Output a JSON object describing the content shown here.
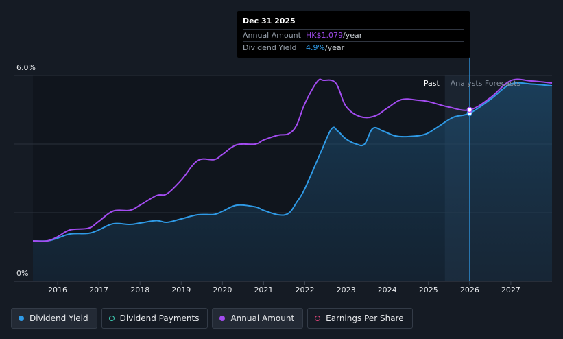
{
  "tooltip": {
    "date": "Dec 31 2025",
    "annual_amount_label": "Annual Amount",
    "annual_amount_value": "HK$1.079",
    "annual_amount_unit": "/year",
    "dividend_yield_label": "Dividend Yield",
    "dividend_yield_value": "4.9%",
    "dividend_yield_unit": "/year"
  },
  "legend": [
    {
      "label": "Dividend Yield",
      "color": "#2f9ae6",
      "style": "filled",
      "active": true
    },
    {
      "label": "Dividend Payments",
      "color": "#3ed0b6",
      "style": "outline",
      "active": false
    },
    {
      "label": "Annual Amount",
      "color": "#a34cf0",
      "style": "filled",
      "active": true
    },
    {
      "label": "Earnings Per Share",
      "color": "#e0457b",
      "style": "outline",
      "active": false
    }
  ],
  "chart_data": {
    "type": "area",
    "x_ticks": [
      "2016",
      "2017",
      "2018",
      "2019",
      "2020",
      "2021",
      "2022",
      "2023",
      "2024",
      "2025",
      "2026",
      "2027"
    ],
    "xlim": [
      2015.4,
      2028.0
    ],
    "y_ticks": [
      "0%",
      "6.0%"
    ],
    "ylim": [
      0,
      6.0
    ],
    "past_label": "Past",
    "forecast_label": "Analysts Forecasts",
    "forecast_start": 2025.4,
    "highlight_x": 2026.0,
    "grid": true,
    "legend_position": "bottom",
    "series": [
      {
        "name": "Dividend Yield",
        "color": "#2f9ae6",
        "x": [
          2015.4,
          2015.75,
          2016.0,
          2016.3,
          2016.75,
          2017.0,
          2017.35,
          2017.75,
          2018.0,
          2018.4,
          2018.65,
          2019.0,
          2019.4,
          2019.8,
          2020.0,
          2020.35,
          2020.8,
          2021.0,
          2021.35,
          2021.6,
          2021.8,
          2022.0,
          2022.4,
          2022.65,
          2022.8,
          2023.0,
          2023.25,
          2023.45,
          2023.65,
          2023.9,
          2024.2,
          2024.5,
          2024.9,
          2025.2,
          2025.6,
          2026.0,
          2026.5,
          2027.0,
          2027.5,
          2028.0
        ],
        "values": [
          1.18,
          1.18,
          1.26,
          1.38,
          1.4,
          1.5,
          1.68,
          1.66,
          1.7,
          1.77,
          1.72,
          1.82,
          1.94,
          1.95,
          2.04,
          2.22,
          2.17,
          2.07,
          1.94,
          1.98,
          2.3,
          2.7,
          3.8,
          4.45,
          4.38,
          4.15,
          4.0,
          4.0,
          4.46,
          4.38,
          4.24,
          4.22,
          4.28,
          4.48,
          4.78,
          4.9,
          5.3,
          5.75,
          5.75,
          5.7
        ]
      },
      {
        "name": "Annual Amount",
        "color": "#a34cf0",
        "x": [
          2015.4,
          2015.75,
          2016.0,
          2016.3,
          2016.75,
          2017.0,
          2017.35,
          2017.75,
          2018.0,
          2018.4,
          2018.65,
          2019.0,
          2019.4,
          2019.8,
          2020.0,
          2020.35,
          2020.8,
          2021.0,
          2021.35,
          2021.6,
          2021.8,
          2022.0,
          2022.3,
          2022.45,
          2022.75,
          2023.0,
          2023.35,
          2023.7,
          2024.0,
          2024.35,
          2024.75,
          2025.0,
          2025.5,
          2026.0,
          2026.5,
          2027.0,
          2027.5,
          2028.0
        ],
        "values": [
          1.18,
          1.18,
          1.3,
          1.5,
          1.55,
          1.75,
          2.05,
          2.07,
          2.22,
          2.5,
          2.55,
          2.95,
          3.52,
          3.55,
          3.7,
          3.98,
          4.0,
          4.12,
          4.26,
          4.3,
          4.55,
          5.18,
          5.82,
          5.86,
          5.78,
          5.1,
          4.8,
          4.82,
          5.05,
          5.3,
          5.28,
          5.24,
          5.08,
          5.0,
          5.35,
          5.85,
          5.84,
          5.78
        ]
      }
    ]
  }
}
